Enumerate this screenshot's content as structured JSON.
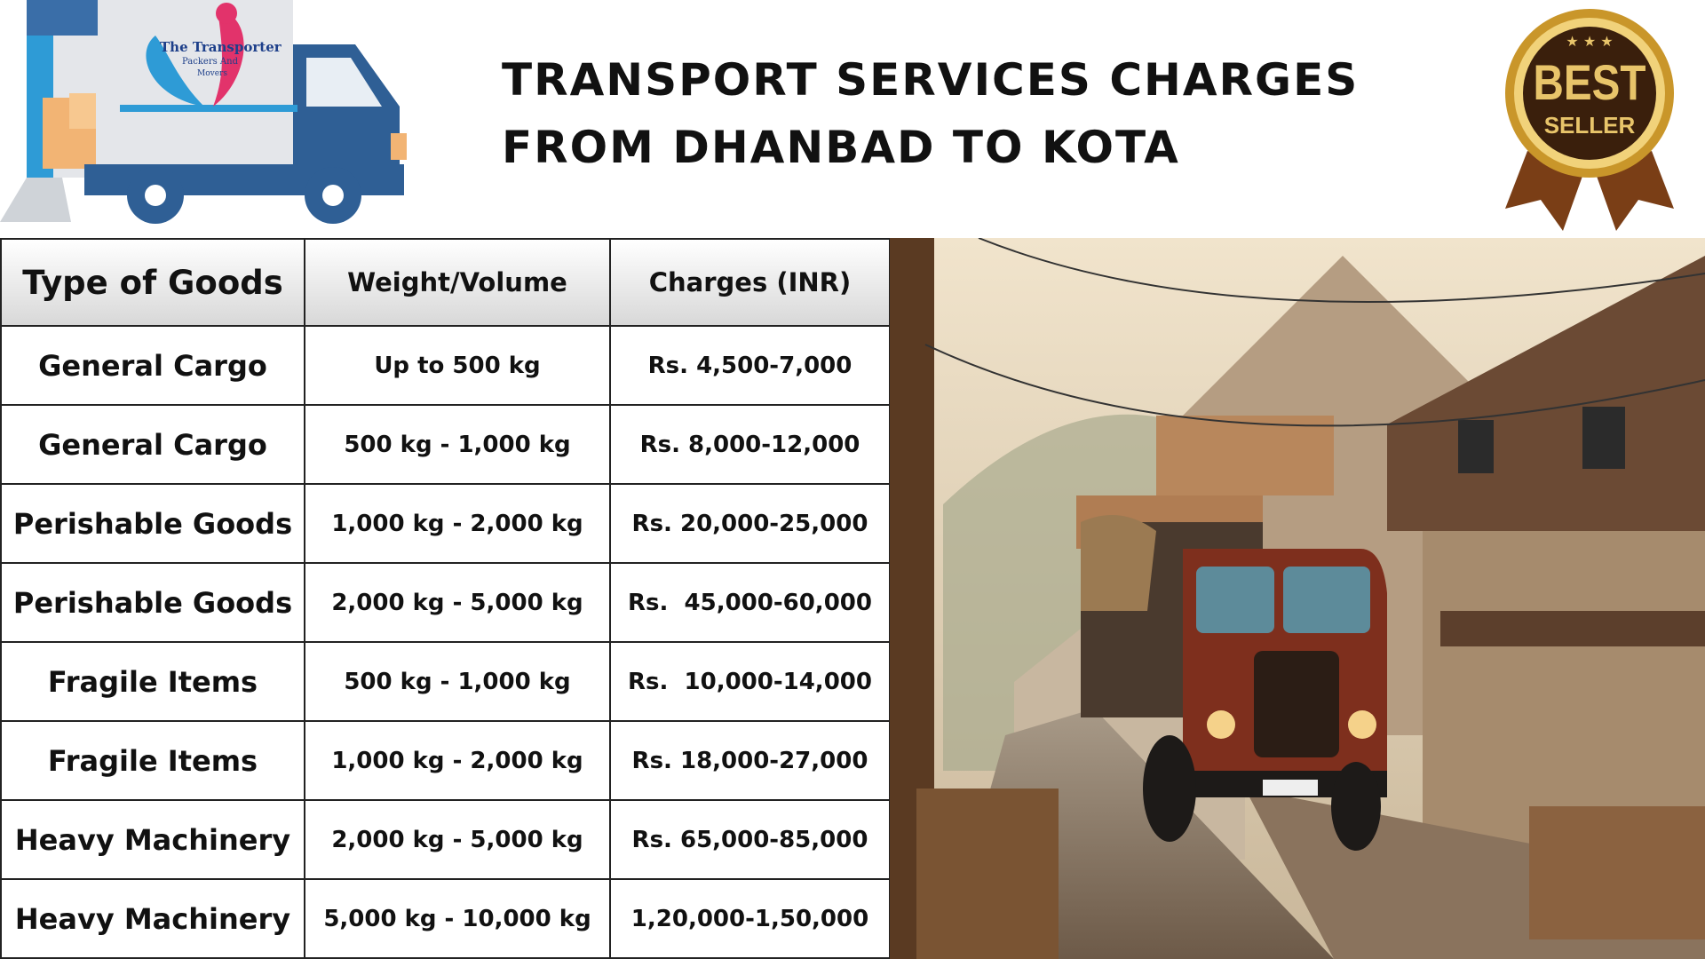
{
  "header": {
    "title_lines": [
      "TRANSPORT SERVICES CHARGES",
      "FROM DHANBAD TO KOTA"
    ]
  },
  "logo": {
    "lines": [
      "The Transporter",
      "Packers And",
      "Movers"
    ]
  },
  "badge": {
    "lines": [
      "BEST",
      "SELLER"
    ]
  },
  "table": {
    "columns": [
      "Type of Goods",
      "Weight/Volume",
      "Charges (INR)"
    ],
    "rows": [
      [
        "General Cargo",
        "Up to 500 kg",
        "Rs. 4,500-7,000"
      ],
      [
        "General Cargo",
        "500 kg - 1,000 kg",
        "Rs. 8,000-12,000"
      ],
      [
        "Perishable Goods",
        "1,000 kg - 2,000 kg",
        "Rs. 20,000-25,000"
      ],
      [
        "Perishable Goods",
        "2,000 kg - 5,000 kg",
        "Rs.  45,000-60,000"
      ],
      [
        "Fragile Items",
        "500 kg - 1,000 kg",
        "Rs.  10,000-14,000"
      ],
      [
        "Fragile Items",
        "1,000 kg - 2,000 kg",
        "Rs. 18,000-27,000"
      ],
      [
        "Heavy Machinery",
        "2,000 kg - 5,000 kg",
        "Rs. 65,000-85,000"
      ],
      [
        "Heavy Machinery",
        "5,000 kg - 10,000 kg",
        "1,20,000-1,50,000"
      ]
    ]
  }
}
